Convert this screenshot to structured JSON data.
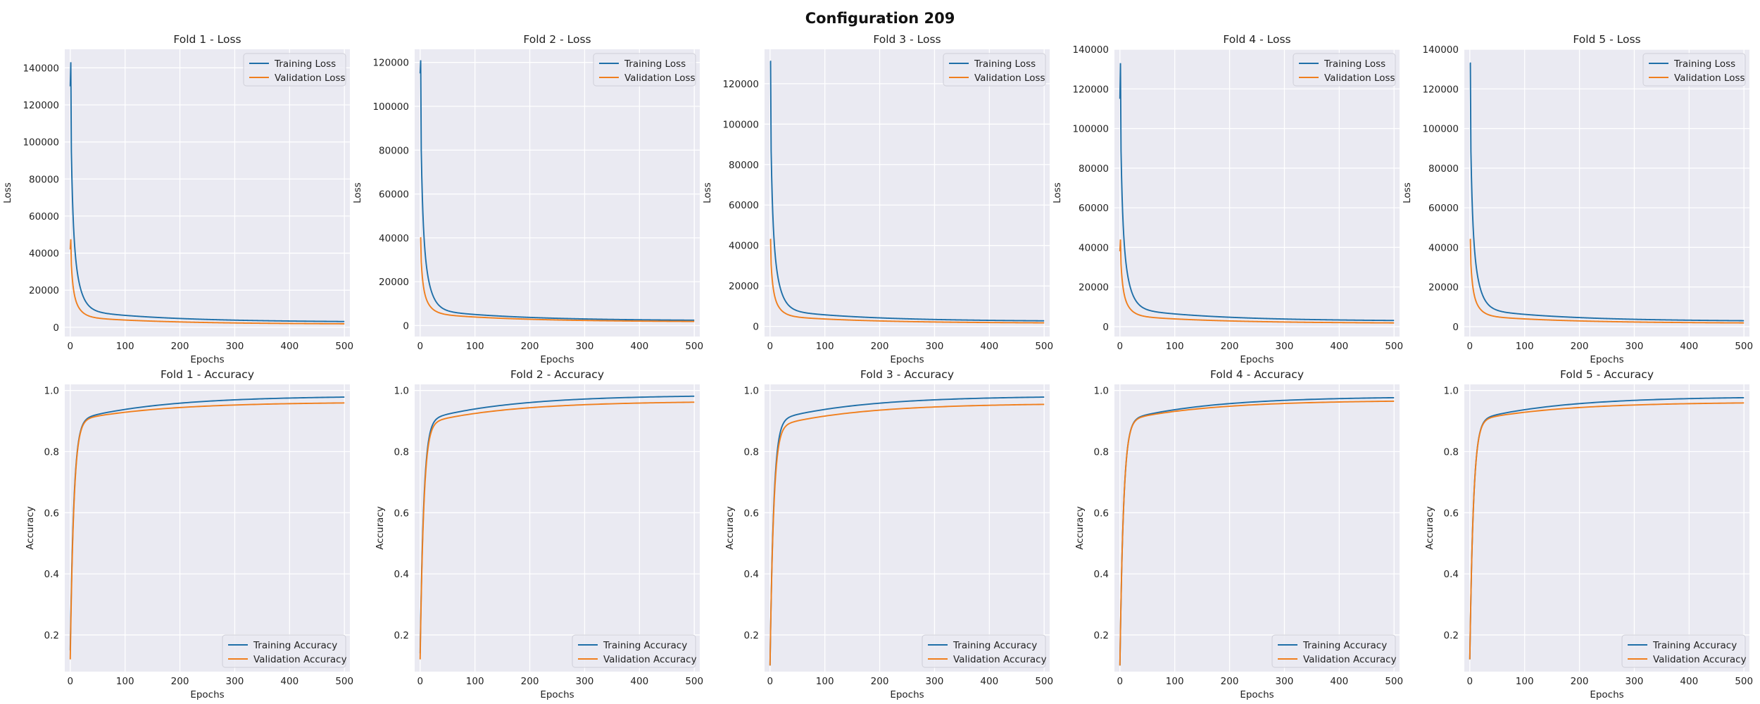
{
  "figure_title": "Configuration 209",
  "colors": {
    "training": "#1f6fa8",
    "validation": "#f07f1e",
    "panel_bg": "#eaeaf2",
    "grid": "#ffffff"
  },
  "chart_data": [
    {
      "type": "line",
      "title": "Fold 1 - Loss",
      "xlabel": "Epochs",
      "ylabel": "Loss",
      "kind": "loss",
      "xlim": [
        -10,
        510
      ],
      "ylim": [
        -5000,
        150000
      ],
      "xticks": [
        0,
        100,
        200,
        300,
        400,
        500
      ],
      "yticks": [
        0,
        20000,
        40000,
        60000,
        80000,
        100000,
        120000,
        140000
      ],
      "legend": "upper right",
      "grid": true,
      "series": [
        {
          "name": "Training Loss",
          "start": 130000,
          "peak": 143000,
          "end": 2800
        },
        {
          "name": "Validation Loss",
          "start": 42000,
          "peak": 47500,
          "end": 1700
        }
      ]
    },
    {
      "type": "line",
      "title": "Fold 2 - Loss",
      "xlabel": "Epochs",
      "ylabel": "Loss",
      "kind": "loss",
      "xlim": [
        -10,
        510
      ],
      "ylim": [
        -5000,
        126000
      ],
      "xticks": [
        0,
        100,
        200,
        300,
        400,
        500
      ],
      "yticks": [
        0,
        20000,
        40000,
        60000,
        80000,
        100000,
        120000
      ],
      "legend": "upper right",
      "grid": true,
      "series": [
        {
          "name": "Training Loss",
          "start": 115000,
          "peak": 121000,
          "end": 2200
        },
        {
          "name": "Validation Loss",
          "start": 40000,
          "peak": 40000,
          "end": 1700
        }
      ]
    },
    {
      "type": "line",
      "title": "Fold 3 - Loss",
      "xlabel": "Epochs",
      "ylabel": "Loss",
      "kind": "loss",
      "xlim": [
        -10,
        510
      ],
      "ylim": [
        -5000,
        137000
      ],
      "xticks": [
        0,
        100,
        200,
        300,
        400,
        500
      ],
      "yticks": [
        0,
        20000,
        40000,
        60000,
        80000,
        100000,
        120000
      ],
      "legend": "upper right",
      "grid": true,
      "series": [
        {
          "name": "Training Loss",
          "start": 131000,
          "peak": 131000,
          "end": 2500
        },
        {
          "name": "Validation Loss",
          "start": 43000,
          "peak": 43000,
          "end": 1600
        }
      ]
    },
    {
      "type": "line",
      "title": "Fold 4 - Loss",
      "xlabel": "Epochs",
      "ylabel": "Loss",
      "kind": "loss",
      "xlim": [
        -10,
        510
      ],
      "ylim": [
        -5000,
        140000
      ],
      "xticks": [
        0,
        100,
        200,
        300,
        400,
        500
      ],
      "yticks": [
        0,
        20000,
        40000,
        60000,
        80000,
        100000,
        120000,
        140000
      ],
      "legend": "upper right",
      "grid": true,
      "series": [
        {
          "name": "Training Loss",
          "start": 115000,
          "peak": 133000,
          "end": 2800
        },
        {
          "name": "Validation Loss",
          "start": 38000,
          "peak": 44000,
          "end": 1700
        }
      ]
    },
    {
      "type": "line",
      "title": "Fold 5 - Loss",
      "xlabel": "Epochs",
      "ylabel": "Loss",
      "kind": "loss",
      "xlim": [
        -10,
        510
      ],
      "ylim": [
        -5000,
        140000
      ],
      "xticks": [
        0,
        100,
        200,
        300,
        400,
        500
      ],
      "yticks": [
        0,
        20000,
        40000,
        60000,
        80000,
        100000,
        120000,
        140000
      ],
      "legend": "upper right",
      "grid": true,
      "series": [
        {
          "name": "Training Loss",
          "start": 133000,
          "peak": 133000,
          "end": 2700
        },
        {
          "name": "Validation Loss",
          "start": 44000,
          "peak": 44000,
          "end": 1700
        }
      ]
    },
    {
      "type": "line",
      "title": "Fold 1 - Accuracy",
      "xlabel": "Epochs",
      "ylabel": "Accuracy",
      "kind": "accuracy",
      "xlim": [
        -10,
        510
      ],
      "ylim": [
        0.08,
        1.02
      ],
      "xticks": [
        0,
        100,
        200,
        300,
        400,
        500
      ],
      "yticks": [
        0.2,
        0.4,
        0.6,
        0.8,
        1.0
      ],
      "legend": "lower right",
      "grid": true,
      "series": [
        {
          "name": "Training Accuracy",
          "start": 0.15,
          "plateau": 0.9,
          "end": 0.982
        },
        {
          "name": "Validation Accuracy",
          "start": 0.12,
          "plateau": 0.9,
          "end": 0.962
        }
      ]
    },
    {
      "type": "line",
      "title": "Fold 2 - Accuracy",
      "xlabel": "Epochs",
      "ylabel": "Accuracy",
      "kind": "accuracy",
      "xlim": [
        -10,
        510
      ],
      "ylim": [
        0.08,
        1.02
      ],
      "xticks": [
        0,
        100,
        200,
        300,
        400,
        500
      ],
      "yticks": [
        0.2,
        0.4,
        0.6,
        0.8,
        1.0
      ],
      "legend": "lower right",
      "grid": true,
      "series": [
        {
          "name": "Training Accuracy",
          "start": 0.14,
          "plateau": 0.9,
          "end": 0.985
        },
        {
          "name": "Validation Accuracy",
          "start": 0.12,
          "plateau": 0.89,
          "end": 0.965
        }
      ]
    },
    {
      "type": "line",
      "title": "Fold 3 - Accuracy",
      "xlabel": "Epochs",
      "ylabel": "Accuracy",
      "kind": "accuracy",
      "xlim": [
        -10,
        510
      ],
      "ylim": [
        0.08,
        1.02
      ],
      "xticks": [
        0,
        100,
        200,
        300,
        400,
        500
      ],
      "yticks": [
        0.2,
        0.4,
        0.6,
        0.8,
        1.0
      ],
      "legend": "lower right",
      "grid": true,
      "series": [
        {
          "name": "Training Accuracy",
          "start": 0.1,
          "plateau": 0.9,
          "end": 0.982
        },
        {
          "name": "Validation Accuracy",
          "start": 0.1,
          "plateau": 0.88,
          "end": 0.958
        }
      ]
    },
    {
      "type": "line",
      "title": "Fold 4 - Accuracy",
      "xlabel": "Epochs",
      "ylabel": "Accuracy",
      "kind": "accuracy",
      "xlim": [
        -10,
        510
      ],
      "ylim": [
        0.08,
        1.02
      ],
      "xticks": [
        0,
        100,
        200,
        300,
        400,
        500
      ],
      "yticks": [
        0.2,
        0.4,
        0.6,
        0.8,
        1.0
      ],
      "legend": "lower right",
      "grid": true,
      "series": [
        {
          "name": "Training Accuracy",
          "start": 0.1,
          "plateau": 0.9,
          "end": 0.98
        },
        {
          "name": "Validation Accuracy",
          "start": 0.1,
          "plateau": 0.9,
          "end": 0.968
        }
      ]
    },
    {
      "type": "line",
      "title": "Fold 5 - Accuracy",
      "xlabel": "Epochs",
      "ylabel": "Accuracy",
      "kind": "accuracy",
      "xlim": [
        -10,
        510
      ],
      "ylim": [
        0.08,
        1.02
      ],
      "xticks": [
        0,
        100,
        200,
        300,
        400,
        500
      ],
      "yticks": [
        0.2,
        0.4,
        0.6,
        0.8,
        1.0
      ],
      "legend": "lower right",
      "grid": true,
      "series": [
        {
          "name": "Training Accuracy",
          "start": 0.12,
          "plateau": 0.9,
          "end": 0.98
        },
        {
          "name": "Validation Accuracy",
          "start": 0.12,
          "plateau": 0.9,
          "end": 0.962
        }
      ]
    }
  ]
}
